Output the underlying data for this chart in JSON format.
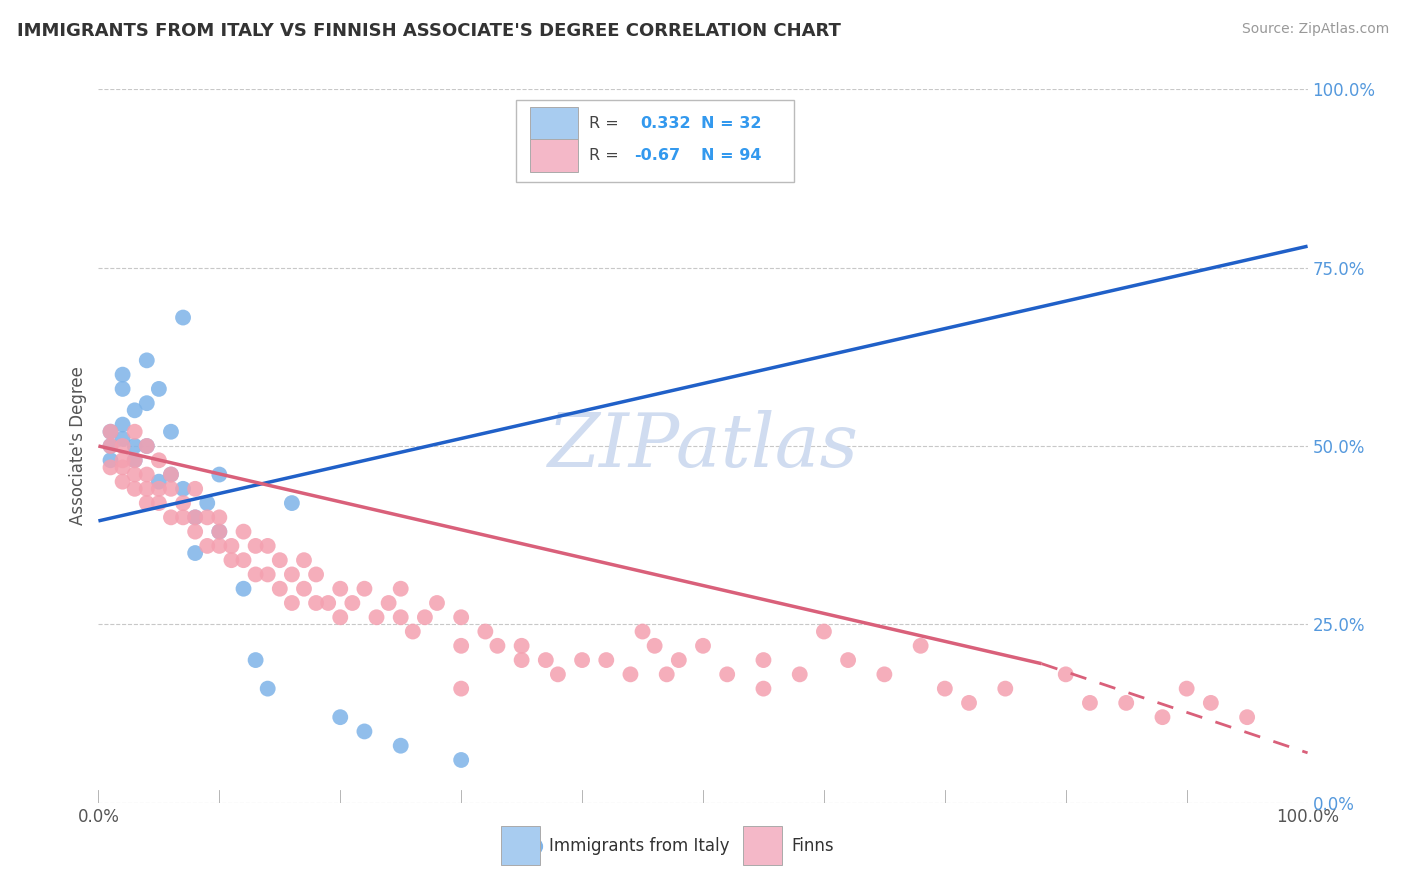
{
  "title": "IMMIGRANTS FROM ITALY VS FINNISH ASSOCIATE'S DEGREE CORRELATION CHART",
  "source": "Source: ZipAtlas.com",
  "ylabel": "Associate's Degree",
  "y_tick_labels": [
    "0.0%",
    "25.0%",
    "50.0%",
    "75.0%",
    "100.0%"
  ],
  "y_tick_values": [
    0.0,
    0.25,
    0.5,
    0.75,
    1.0
  ],
  "x_range": [
    0.0,
    1.0
  ],
  "y_range": [
    0.0,
    1.0
  ],
  "r_italy": 0.332,
  "n_italy": 32,
  "r_finns": -0.67,
  "n_finns": 94,
  "color_italy": "#7EB3E8",
  "color_finns": "#F4A0B0",
  "line_color_italy": "#2060C8",
  "line_color_finns": "#D9607A",
  "watermark_color": "#D0DCF0",
  "legend_box_color_italy": "#A8CCF0",
  "legend_box_color_finns": "#F4B8C8",
  "scatter_italy": [
    [
      0.01,
      0.52
    ],
    [
      0.01,
      0.5
    ],
    [
      0.01,
      0.48
    ],
    [
      0.02,
      0.53
    ],
    [
      0.02,
      0.51
    ],
    [
      0.02,
      0.58
    ],
    [
      0.02,
      0.6
    ],
    [
      0.03,
      0.55
    ],
    [
      0.03,
      0.5
    ],
    [
      0.03,
      0.48
    ],
    [
      0.04,
      0.62
    ],
    [
      0.04,
      0.56
    ],
    [
      0.04,
      0.5
    ],
    [
      0.05,
      0.45
    ],
    [
      0.05,
      0.58
    ],
    [
      0.06,
      0.52
    ],
    [
      0.06,
      0.46
    ],
    [
      0.07,
      0.68
    ],
    [
      0.07,
      0.44
    ],
    [
      0.08,
      0.4
    ],
    [
      0.08,
      0.35
    ],
    [
      0.09,
      0.42
    ],
    [
      0.1,
      0.46
    ],
    [
      0.1,
      0.38
    ],
    [
      0.12,
      0.3
    ],
    [
      0.13,
      0.2
    ],
    [
      0.14,
      0.16
    ],
    [
      0.16,
      0.42
    ],
    [
      0.2,
      0.12
    ],
    [
      0.22,
      0.1
    ],
    [
      0.25,
      0.08
    ],
    [
      0.3,
      0.06
    ]
  ],
  "scatter_finns": [
    [
      0.01,
      0.52
    ],
    [
      0.01,
      0.5
    ],
    [
      0.01,
      0.47
    ],
    [
      0.02,
      0.5
    ],
    [
      0.02,
      0.47
    ],
    [
      0.02,
      0.45
    ],
    [
      0.02,
      0.48
    ],
    [
      0.03,
      0.46
    ],
    [
      0.03,
      0.44
    ],
    [
      0.03,
      0.52
    ],
    [
      0.03,
      0.48
    ],
    [
      0.04,
      0.46
    ],
    [
      0.04,
      0.44
    ],
    [
      0.04,
      0.5
    ],
    [
      0.04,
      0.42
    ],
    [
      0.05,
      0.48
    ],
    [
      0.05,
      0.44
    ],
    [
      0.05,
      0.42
    ],
    [
      0.06,
      0.46
    ],
    [
      0.06,
      0.4
    ],
    [
      0.06,
      0.44
    ],
    [
      0.07,
      0.4
    ],
    [
      0.07,
      0.42
    ],
    [
      0.08,
      0.4
    ],
    [
      0.08,
      0.38
    ],
    [
      0.08,
      0.44
    ],
    [
      0.09,
      0.36
    ],
    [
      0.09,
      0.4
    ],
    [
      0.1,
      0.38
    ],
    [
      0.1,
      0.36
    ],
    [
      0.1,
      0.4
    ],
    [
      0.11,
      0.36
    ],
    [
      0.11,
      0.34
    ],
    [
      0.12,
      0.38
    ],
    [
      0.12,
      0.34
    ],
    [
      0.13,
      0.36
    ],
    [
      0.13,
      0.32
    ],
    [
      0.14,
      0.36
    ],
    [
      0.14,
      0.32
    ],
    [
      0.15,
      0.34
    ],
    [
      0.15,
      0.3
    ],
    [
      0.16,
      0.32
    ],
    [
      0.16,
      0.28
    ],
    [
      0.17,
      0.34
    ],
    [
      0.17,
      0.3
    ],
    [
      0.18,
      0.28
    ],
    [
      0.18,
      0.32
    ],
    [
      0.19,
      0.28
    ],
    [
      0.2,
      0.3
    ],
    [
      0.2,
      0.26
    ],
    [
      0.21,
      0.28
    ],
    [
      0.22,
      0.3
    ],
    [
      0.23,
      0.26
    ],
    [
      0.24,
      0.28
    ],
    [
      0.25,
      0.26
    ],
    [
      0.25,
      0.3
    ],
    [
      0.26,
      0.24
    ],
    [
      0.27,
      0.26
    ],
    [
      0.28,
      0.28
    ],
    [
      0.3,
      0.22
    ],
    [
      0.3,
      0.26
    ],
    [
      0.32,
      0.24
    ],
    [
      0.33,
      0.22
    ],
    [
      0.35,
      0.2
    ],
    [
      0.35,
      0.22
    ],
    [
      0.37,
      0.2
    ],
    [
      0.38,
      0.18
    ],
    [
      0.4,
      0.2
    ],
    [
      0.42,
      0.2
    ],
    [
      0.44,
      0.18
    ],
    [
      0.45,
      0.24
    ],
    [
      0.46,
      0.22
    ],
    [
      0.47,
      0.18
    ],
    [
      0.48,
      0.2
    ],
    [
      0.5,
      0.22
    ],
    [
      0.52,
      0.18
    ],
    [
      0.55,
      0.2
    ],
    [
      0.58,
      0.18
    ],
    [
      0.6,
      0.24
    ],
    [
      0.62,
      0.2
    ],
    [
      0.65,
      0.18
    ],
    [
      0.68,
      0.22
    ],
    [
      0.7,
      0.16
    ],
    [
      0.72,
      0.14
    ],
    [
      0.75,
      0.16
    ],
    [
      0.8,
      0.18
    ],
    [
      0.82,
      0.14
    ],
    [
      0.85,
      0.14
    ],
    [
      0.88,
      0.12
    ],
    [
      0.9,
      0.16
    ],
    [
      0.92,
      0.14
    ],
    [
      0.95,
      0.12
    ],
    [
      0.55,
      0.16
    ],
    [
      0.3,
      0.16
    ]
  ],
  "italy_trend": [
    0.0,
    0.395,
    1.0,
    0.78
  ],
  "finns_trend_solid": [
    0.0,
    0.5,
    0.78,
    0.195
  ],
  "finns_trend_dashed": [
    0.78,
    0.195,
    1.0,
    0.07
  ]
}
